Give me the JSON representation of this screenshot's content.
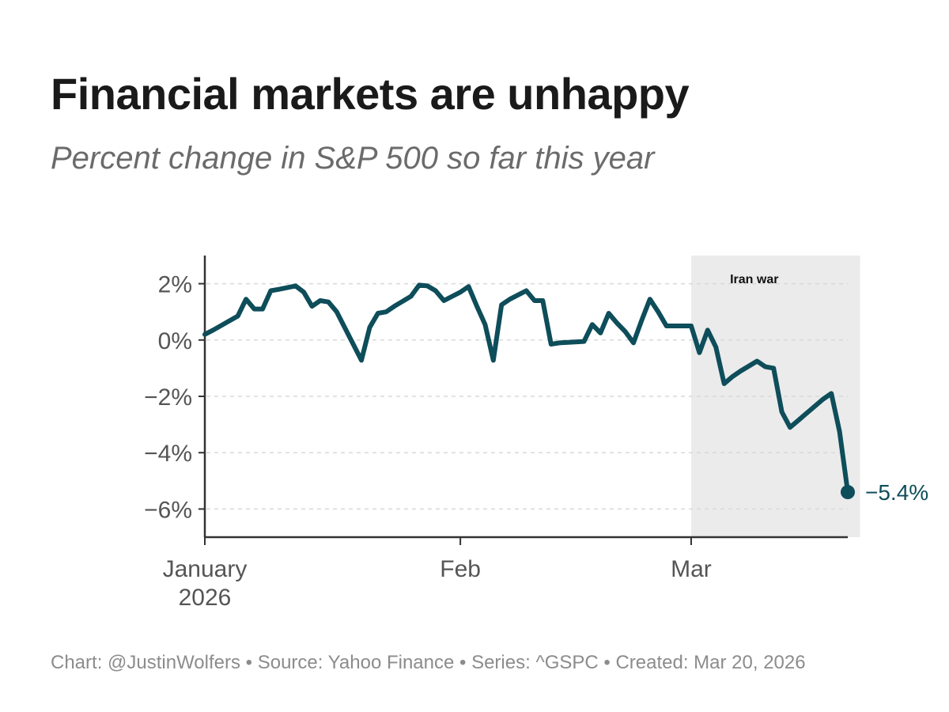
{
  "title": "Financial markets are unhappy",
  "subtitle": "Percent change in S&P 500 so far this year",
  "footer": "Chart: @JustinWolfers • Source: Yahoo Finance • Series: ^GSPC • Created: Mar 20, 2026",
  "colors": {
    "line": "#0e4d5a",
    "shade": "#ebebeb",
    "axis": "#333333",
    "grid": "#d9d9d9"
  },
  "chart_data": {
    "type": "line",
    "title": "Financial markets are unhappy",
    "subtitle": "Percent change in S&P 500 so far this year",
    "xlabel": "",
    "ylabel": "",
    "x_unit": "day of year 2026",
    "xlim": [
      1,
      79
    ],
    "ylim": [
      -7,
      3
    ],
    "grid": "horizontal dashed",
    "y_ticks": [
      {
        "value": 2,
        "label": "2%"
      },
      {
        "value": 0,
        "label": "0%"
      },
      {
        "value": -2,
        "label": "−2%"
      },
      {
        "value": -4,
        "label": "−4%"
      },
      {
        "value": -6,
        "label": "−6%"
      }
    ],
    "x_ticks": [
      {
        "value": 1,
        "lines": [
          "January",
          "2026"
        ]
      },
      {
        "value": 32,
        "lines": [
          "Feb"
        ]
      },
      {
        "value": 60,
        "lines": [
          "Mar"
        ]
      }
    ],
    "annotation": {
      "label": "Iran war",
      "x_start": 60,
      "x_end": 80.5
    },
    "end_label": "−5.4%",
    "series": [
      {
        "name": "S&P 500 YTD % change",
        "x": [
          1,
          2,
          5,
          6,
          7,
          8,
          9,
          10,
          12,
          13,
          14,
          15,
          16,
          17,
          20,
          21,
          22,
          23,
          24,
          26,
          27,
          28,
          29,
          30,
          31,
          32,
          33,
          34,
          35,
          36,
          37,
          38,
          39,
          40,
          41,
          42,
          43,
          44,
          47,
          48,
          49,
          50,
          51,
          52,
          53,
          54,
          55,
          56,
          57,
          58,
          59,
          60,
          61,
          62,
          63,
          64,
          65,
          66,
          68,
          69,
          70,
          71,
          72,
          73,
          74,
          76,
          77,
          78,
          79
        ],
        "y": [
          0.2,
          0.35,
          0.85,
          1.45,
          1.1,
          1.1,
          1.75,
          1.8,
          1.92,
          1.7,
          1.2,
          1.4,
          1.35,
          1.0,
          -0.72,
          0.45,
          0.95,
          1.0,
          1.2,
          1.55,
          1.95,
          1.92,
          1.75,
          1.4,
          1.55,
          1.7,
          1.9,
          1.2,
          0.55,
          -0.72,
          1.25,
          1.45,
          1.6,
          1.75,
          1.4,
          1.4,
          -0.15,
          -0.1,
          -0.05,
          0.55,
          0.25,
          0.95,
          0.6,
          0.3,
          -0.1,
          0.7,
          1.45,
          1.0,
          0.5,
          0.5,
          0.5,
          0.5,
          -0.45,
          0.35,
          -0.25,
          -1.55,
          -1.3,
          -1.1,
          -0.75,
          -0.95,
          -1.0,
          -2.55,
          -3.1,
          -2.85,
          -2.6,
          -2.1,
          -1.9,
          -3.25,
          -5.4
        ]
      }
    ]
  }
}
